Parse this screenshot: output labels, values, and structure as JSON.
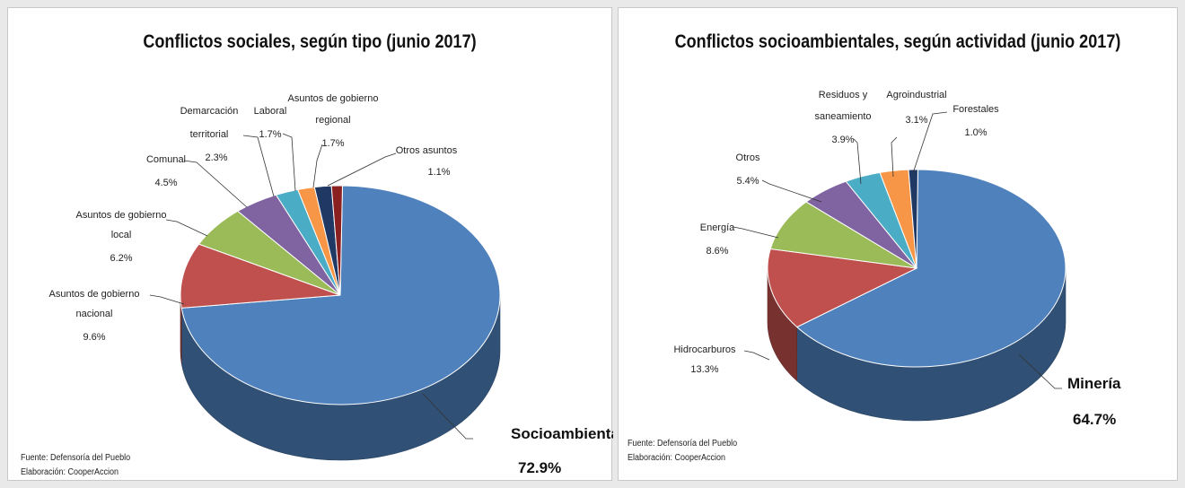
{
  "charts": [
    {
      "source": "Fuente: Defensoría del Pueblo",
      "credit": "Elaboración: CooperAccion"
    },
    {
      "source": "Fuente: Defensoría del Pueblo",
      "credit": "Elaboración: CooperAccion"
    }
  ],
  "chart_data": [
    {
      "type": "pie",
      "title": "Conflictos sociales, según tipo (junio 2017)",
      "three_d": true,
      "slices": [
        {
          "label": "Socioambiental",
          "value": 72.9,
          "value_label": "72.9%",
          "color": "#4f81bd"
        },
        {
          "label": "Asuntos de gobierno nacional",
          "value": 9.6,
          "value_label": "9.6%",
          "color": "#c0504d"
        },
        {
          "label": "Asuntos de gobierno local",
          "value": 6.2,
          "value_label": "6.2%",
          "color": "#9bbb59"
        },
        {
          "label": "Comunal",
          "value": 4.5,
          "value_label": "4.5%",
          "color": "#8064a2"
        },
        {
          "label": "Demarcación territorial",
          "value": 2.3,
          "value_label": "2.3%",
          "color": "#4bacc6"
        },
        {
          "label": "Laboral",
          "value": 1.7,
          "value_label": "1.7%",
          "color": "#f79646"
        },
        {
          "label": "Asuntos de gobierno regional",
          "value": 1.7,
          "value_label": "1.7%",
          "color": "#1f3864"
        },
        {
          "label": "Otros asuntos",
          "value": 1.1,
          "value_label": "1.1%",
          "color": "#8b2020"
        }
      ]
    },
    {
      "type": "pie",
      "title": "Conflictos socioambientales, según actividad (junio 2017)",
      "three_d": true,
      "slices": [
        {
          "label": "Minería",
          "value": 64.7,
          "value_label": "64.7%",
          "color": "#4f81bd"
        },
        {
          "label": "Hidrocarburos",
          "value": 13.3,
          "value_label": "13.3%",
          "color": "#c0504d"
        },
        {
          "label": "Energía",
          "value": 8.6,
          "value_label": "8.6%",
          "color": "#9bbb59"
        },
        {
          "label": "Otros",
          "value": 5.4,
          "value_label": "5.4%",
          "color": "#8064a2"
        },
        {
          "label": "Residuos y saneamiento",
          "value": 3.9,
          "value_label": "3.9%",
          "color": "#4bacc6"
        },
        {
          "label": "Agroindustrial",
          "value": 3.1,
          "value_label": "3.1%",
          "color": "#f79646"
        },
        {
          "label": "Forestales",
          "value": 1.0,
          "value_label": "1.0%",
          "color": "#1f3864"
        }
      ]
    }
  ]
}
